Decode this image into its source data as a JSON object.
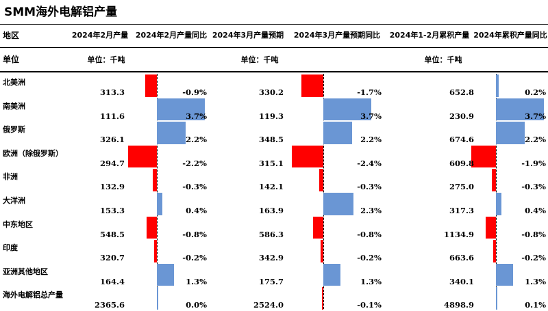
{
  "title": "SMM海外电解铝产量",
  "headers": {
    "region": "地区",
    "feb_output": "2024年2月产量",
    "feb_yoy": "2024年2月产量同比",
    "mar_forecast": "2024年3月产量预期",
    "mar_yoy": "2024年3月产量预期同比",
    "janfeb_cum": "2024年1-2月累积产量",
    "cum_yoy": "2024年累积产量同比"
  },
  "unit_row": {
    "label": "单位",
    "feb_unit": "单位：千吨",
    "mar_unit": "单位：千吨",
    "cum_unit": "单位：千吨"
  },
  "colors": {
    "negative": "#ff0000",
    "positive": "#6a96d4"
  },
  "chart_data": {
    "type": "table",
    "columns": [
      "地区",
      "2024年2月产量",
      "2024年2月产量同比",
      "2024年3月产量预期",
      "2024年3月产量预期同比",
      "2024年1-2月累积产量",
      "2024年累积产量同比"
    ],
    "rows": [
      {
        "region": "北美洲",
        "feb": "313.3",
        "feb_yoy": "-0.9%",
        "feb_yoy_v": -0.9,
        "mar": "330.2",
        "mar_yoy": "-1.7%",
        "mar_yoy_v": -1.7,
        "cum": "652.8",
        "cum_yoy": "0.2%",
        "cum_yoy_v": 0.2
      },
      {
        "region": "南美洲",
        "feb": "111.6",
        "feb_yoy": "3.7%",
        "feb_yoy_v": 3.7,
        "mar": "119.3",
        "mar_yoy": "3.7%",
        "mar_yoy_v": 3.7,
        "cum": "230.9",
        "cum_yoy": "3.7%",
        "cum_yoy_v": 3.7
      },
      {
        "region": "俄罗斯",
        "feb": "326.1",
        "feb_yoy": "2.2%",
        "feb_yoy_v": 2.2,
        "mar": "348.5",
        "mar_yoy": "2.2%",
        "mar_yoy_v": 2.2,
        "cum": "674.6",
        "cum_yoy": "2.2%",
        "cum_yoy_v": 2.2
      },
      {
        "region": "欧洲（除俄罗斯）",
        "feb": "294.7",
        "feb_yoy": "-2.2%",
        "feb_yoy_v": -2.2,
        "mar": "315.1",
        "mar_yoy": "-2.4%",
        "mar_yoy_v": -2.4,
        "cum": "609.8",
        "cum_yoy": "-1.9%",
        "cum_yoy_v": -1.9
      },
      {
        "region": "非洲",
        "feb": "132.9",
        "feb_yoy": "-0.3%",
        "feb_yoy_v": -0.3,
        "mar": "142.1",
        "mar_yoy": "-0.3%",
        "mar_yoy_v": -0.3,
        "cum": "275.0",
        "cum_yoy": "-0.3%",
        "cum_yoy_v": -0.3
      },
      {
        "region": "大洋洲",
        "feb": "153.3",
        "feb_yoy": "0.4%",
        "feb_yoy_v": 0.4,
        "mar": "163.9",
        "mar_yoy": "2.3%",
        "mar_yoy_v": 2.3,
        "cum": "317.3",
        "cum_yoy": "0.4%",
        "cum_yoy_v": 0.4
      },
      {
        "region": "中东地区",
        "feb": "548.5",
        "feb_yoy": "-0.8%",
        "feb_yoy_v": -0.8,
        "mar": "586.3",
        "mar_yoy": "-0.8%",
        "mar_yoy_v": -0.8,
        "cum": "1134.9",
        "cum_yoy": "-0.8%",
        "cum_yoy_v": -0.8
      },
      {
        "region": "印度",
        "feb": "320.7",
        "feb_yoy": "-0.2%",
        "feb_yoy_v": -0.2,
        "mar": "342.9",
        "mar_yoy": "-0.2%",
        "mar_yoy_v": -0.2,
        "cum": "663.6",
        "cum_yoy": "-0.2%",
        "cum_yoy_v": -0.2
      },
      {
        "region": "亚洲其他地区",
        "feb": "164.4",
        "feb_yoy": "1.3%",
        "feb_yoy_v": 1.3,
        "mar": "175.7",
        "mar_yoy": "1.3%",
        "mar_yoy_v": 1.3,
        "cum": "340.1",
        "cum_yoy": "1.3%",
        "cum_yoy_v": 1.3
      },
      {
        "region": "海外电解铝总产量",
        "feb": "2365.6",
        "feb_yoy": "0.0%",
        "feb_yoy_v": 0.0,
        "mar": "2524.0",
        "mar_yoy": "-0.1%",
        "mar_yoy_v": -0.1,
        "cum": "4898.9",
        "cum_yoy": "0.1%",
        "cum_yoy_v": 0.1
      }
    ]
  }
}
